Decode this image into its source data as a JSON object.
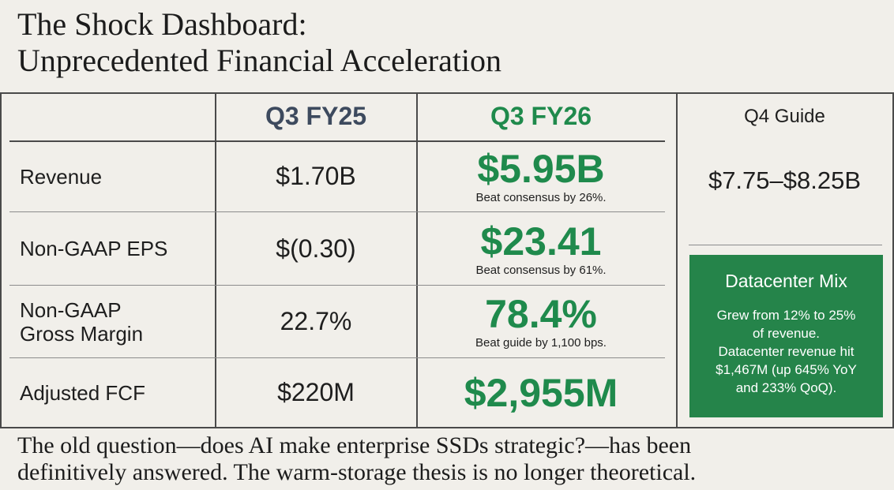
{
  "title": {
    "line1": "The Shock Dashboard:",
    "line2": "Unprecedented Financial Acceleration"
  },
  "table": {
    "col_q3fy25": "Q3 FY25",
    "col_q3fy26": "Q3 FY26",
    "col_q4guide": "Q4 Guide",
    "rows": [
      {
        "label": "Revenue",
        "q3fy25": "$1.70B",
        "q3fy26": "$5.95B",
        "note": "Beat consensus by 26%."
      },
      {
        "label": "Non-GAAP EPS",
        "q3fy25": "$(0.30)",
        "q3fy26": "$23.41",
        "note": "Beat consensus by 61%."
      },
      {
        "label_line1": "Non-GAAP",
        "label_line2": "Gross Margin",
        "q3fy25": "22.7%",
        "q3fy26": "78.4%",
        "note": "Beat guide by 1,100 bps."
      },
      {
        "label": "Adjusted FCF",
        "q3fy25": "$220M",
        "q3fy26": "$2,955M",
        "note": ""
      }
    ],
    "q4guide_value": "$7.75–$8.25B"
  },
  "datacenter_mix": {
    "title": "Datacenter Mix",
    "lines": [
      "Grew from 12% to 25%",
      "of revenue.",
      "Datacenter revenue hit",
      "$1,467M (up 645% YoY",
      "and 233% QoQ)."
    ]
  },
  "footer": {
    "line1": "The old question—does AI make enterprise SSDs strategic?—has been",
    "line2": "definitively answered. The warm-storage thesis is no longer theoretical."
  },
  "colors": {
    "accent_green": "#1f8a4c",
    "box_green": "#25844a",
    "header_slate": "#3d4a5e",
    "background": "#f1efea"
  }
}
